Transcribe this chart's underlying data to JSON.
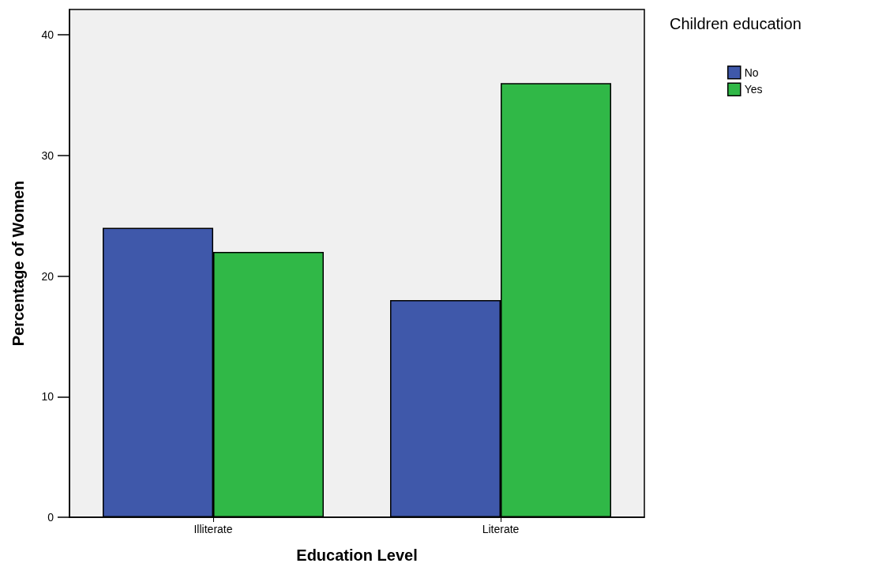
{
  "chart_data": {
    "type": "bar",
    "xlabel": "Education Level",
    "ylabel": "Percentage of Women",
    "legend_title": "Children education",
    "categories": [
      "Illiterate",
      "Literate"
    ],
    "series": [
      {
        "name": "No",
        "color": "#3f58aa",
        "values": [
          24,
          18
        ]
      },
      {
        "name": "Yes",
        "color": "#30b847",
        "values": [
          22,
          36
        ]
      }
    ],
    "ylim": [
      0,
      42.1
    ],
    "yticks": [
      0,
      10,
      20,
      30,
      40
    ],
    "legend": "top right"
  }
}
